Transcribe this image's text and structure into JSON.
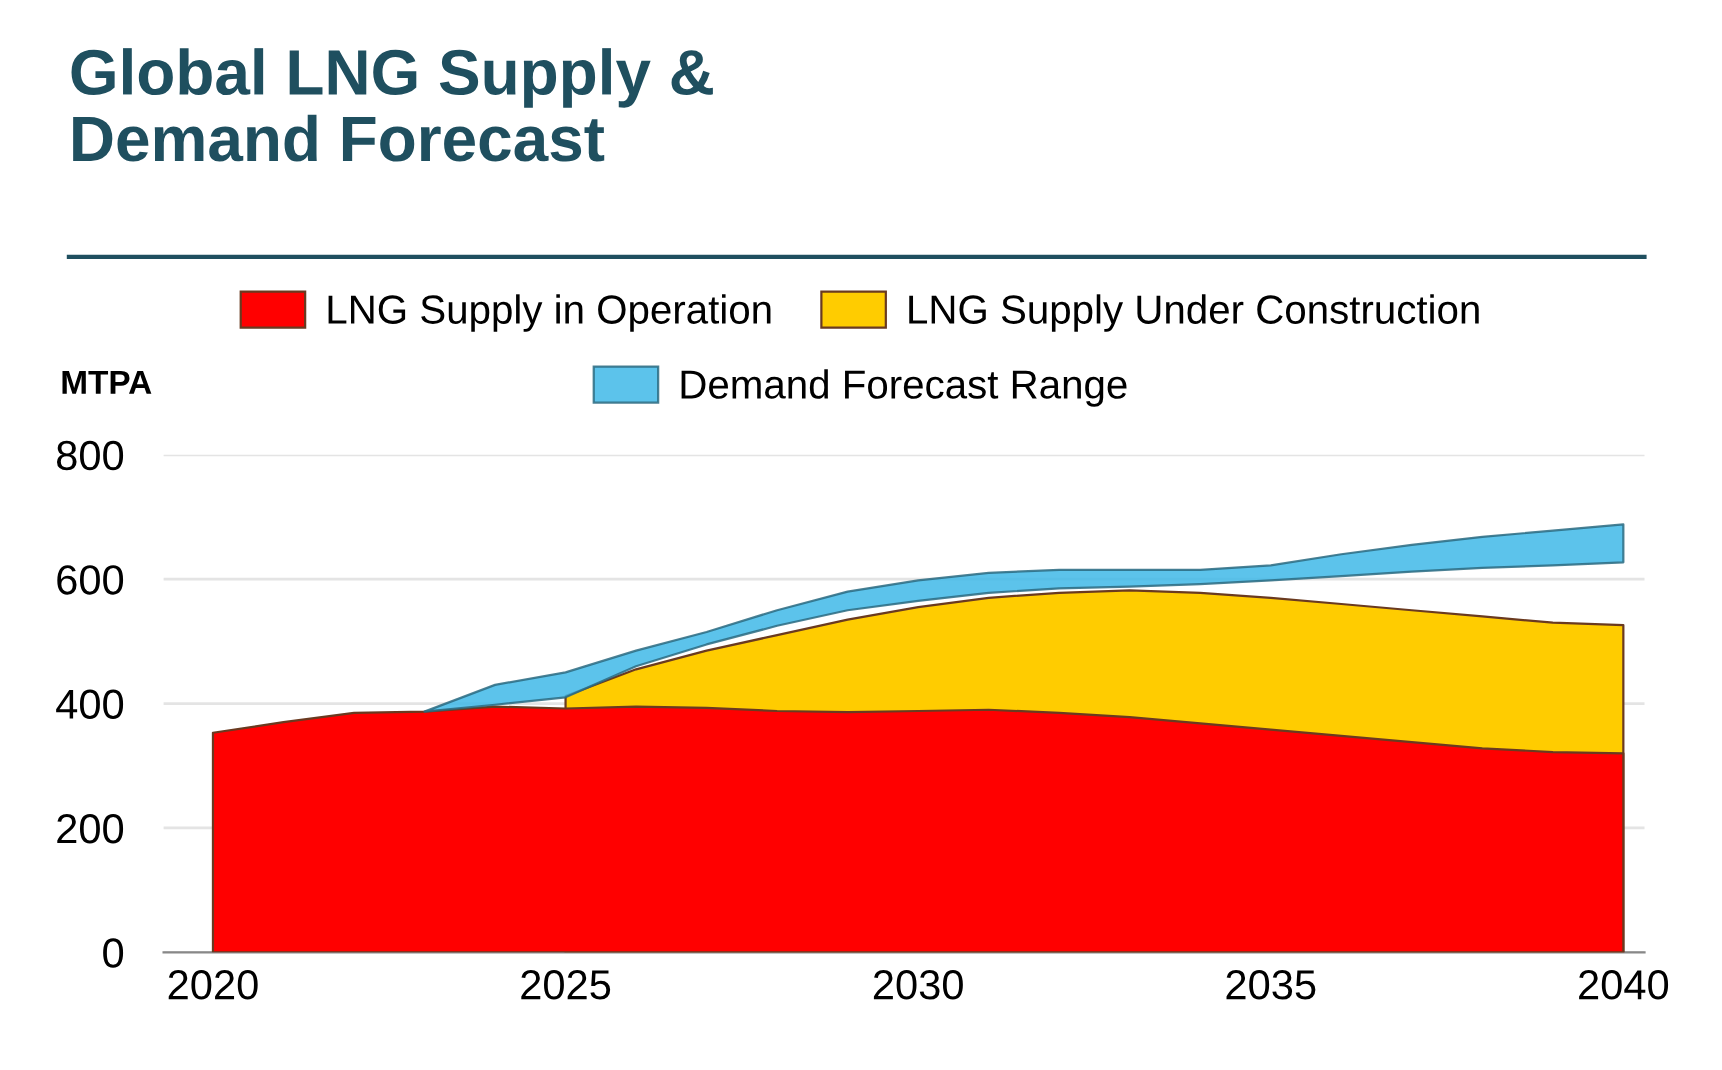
{
  "chart_data": {
    "type": "area",
    "title": "Global LNG Supply &\nDemand Forecast",
    "ylabel": "MTPA",
    "xlim": [
      2019.3,
      2040.3
    ],
    "xticks": [
      2020,
      2025,
      2030,
      2035,
      2040
    ],
    "ylim": [
      0,
      800
    ],
    "yticks": [
      0,
      200,
      400,
      600,
      800
    ],
    "grid": "y",
    "legend": "top",
    "series": [
      {
        "name": "LNG Supply in Operation",
        "color": "#ff0000",
        "x": [
          2020,
          2021,
          2022,
          2023,
          2024,
          2025,
          2026,
          2027,
          2028,
          2029,
          2030,
          2031,
          2032,
          2033,
          2034,
          2035,
          2036,
          2037,
          2038,
          2039,
          2040
        ],
        "values": [
          353,
          370,
          385,
          387,
          395,
          392,
          395,
          393,
          388,
          386,
          388,
          390,
          385,
          378,
          368,
          358,
          348,
          338,
          328,
          322,
          320
        ]
      },
      {
        "name": "LNG Supply Under Construction",
        "color": "#ffcc00",
        "x": [
          2025,
          2026,
          2027,
          2028,
          2029,
          2030,
          2031,
          2032,
          2033,
          2034,
          2035,
          2036,
          2037,
          2038,
          2039,
          2040
        ],
        "values": [
          412,
          455,
          485,
          510,
          535,
          555,
          570,
          578,
          582,
          578,
          570,
          560,
          550,
          540,
          530,
          526
        ]
      },
      {
        "name": "Demand Forecast Range",
        "color": "#40b8e8",
        "x": [
          2023,
          2024,
          2025,
          2026,
          2027,
          2028,
          2029,
          2030,
          2031,
          2032,
          2033,
          2034,
          2035,
          2036,
          2037,
          2038,
          2039,
          2040
        ],
        "values": [
          null,
          null,
          null,
          null,
          null,
          null,
          null,
          null,
          null,
          null,
          null,
          null,
          null,
          null,
          null,
          null,
          null,
          null
        ],
        "upper": [
          387,
          430,
          450,
          485,
          515,
          550,
          580,
          598,
          610,
          615,
          615,
          615,
          622,
          640,
          655,
          668,
          678,
          688
        ],
        "lower": [
          387,
          398,
          410,
          460,
          495,
          525,
          550,
          565,
          578,
          585,
          588,
          592,
          598,
          605,
          612,
          618,
          622,
          627
        ]
      }
    ]
  }
}
